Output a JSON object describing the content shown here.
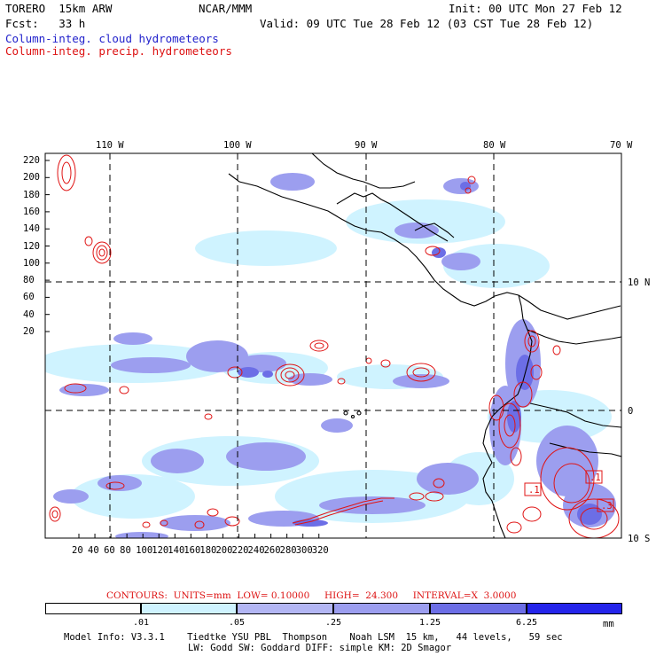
{
  "header": {
    "model": "TORERO  15km ARW",
    "org": "NCAR/MMM",
    "init": "Init: 00 UTC Mon 27 Feb 12",
    "fcst": "Fcst:   33 h",
    "valid": "Valid: 09 UTC Tue 28 Feb 12 (03 CST Tue 28 Feb 12)",
    "cloud_label": "Column-integ. cloud hydrometeors",
    "precip_label": "Column-integ. precip. hydrometeors"
  },
  "map": {
    "top_lon_labels": [
      "110 W",
      "100 W",
      "90 W",
      "80 W",
      "70 W"
    ],
    "right_lat_labels": [
      "10 N",
      "0",
      "10 S"
    ],
    "left_y_labels": [
      "220",
      "200",
      "180",
      "160",
      "140",
      "120",
      "100",
      "80",
      "60",
      "40",
      "20"
    ],
    "bottom_x_labels": [
      "20",
      "40",
      "60",
      "80",
      "100",
      "120",
      "140",
      "160",
      "180",
      "200",
      "220",
      "240",
      "260",
      "280",
      "300",
      "320"
    ],
    "boxed_labels": [
      ".1",
      ".1",
      ".3"
    ],
    "cloud_color": "#6a6aef",
    "precip_color": "#e01414"
  },
  "contours": {
    "label": "CONTOURS:  UNITS=mm  LOW= 0.10000     HIGH=  24.300     INTERVAL=X  3.0000"
  },
  "colorbar": {
    "labels": [
      ".01",
      ".05",
      ".25",
      "1.25",
      "6.25"
    ],
    "unit": "mm",
    "colors": [
      "#ffffff",
      "#cff3ff",
      "#b3b6f4",
      "#9c9eef",
      "#6c6ee6",
      "#2424ea"
    ]
  },
  "footer": {
    "line1": "Model Info: V3.3.1    Tiedtke YSU PBL  Thompson    Noah LSM  15 km,   44 levels,   59 sec",
    "line2": "LW: Godd SW: Goddard DIFF: simple KM: 2D Smagor"
  }
}
